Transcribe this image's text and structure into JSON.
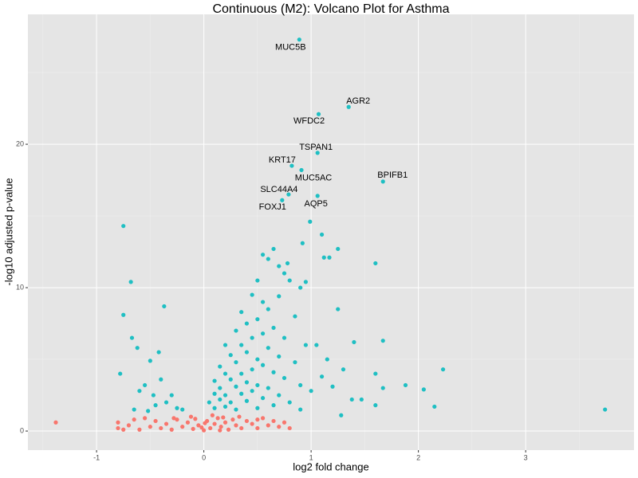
{
  "chart_data": {
    "type": "scatter",
    "title": "Continuous (M2): Volcano Plot for Asthma",
    "xlabel": "log2 fold change",
    "ylabel": "-log10 adjusted p-value",
    "xlim": [
      -1.64,
      4.01
    ],
    "ylim": [
      -1.33,
      29.06
    ],
    "xticks": [
      -1,
      0,
      1,
      2,
      3
    ],
    "yticks": [
      0,
      10,
      20
    ],
    "xminorticks": [
      -1.5,
      -0.5,
      0.5,
      1.5,
      2.5,
      3.5
    ],
    "yminorticks": [
      5,
      15,
      25
    ],
    "grid": true,
    "background": "#e5e5e5",
    "series": [
      {
        "color": "#f8766d",
        "x": [
          -1.38,
          -0.8,
          -0.8,
          -0.7,
          -0.6,
          -0.55,
          -0.5,
          -0.45,
          -0.4,
          -0.35,
          -0.3,
          -0.25,
          -0.2,
          -0.15,
          -0.1,
          -0.05,
          0,
          0.03,
          0.06,
          0.1,
          0.13,
          0.16,
          0.2,
          0.23,
          0.27,
          0.3,
          0.35,
          0.4,
          0.45,
          0.5,
          0.55,
          0.6,
          0.65,
          0.7,
          0.75,
          0.8,
          -0.65,
          -0.75,
          -0.12,
          0.08,
          0.33,
          -0.28,
          0.5,
          0.15,
          -0.02,
          0.01,
          -0.08,
          0.18
        ],
        "y": [
          0.6,
          0.6,
          0.2,
          0.4,
          0.1,
          0.9,
          0.3,
          0.7,
          0.2,
          0.5,
          0.1,
          0.8,
          0.3,
          0.6,
          0.15,
          0.4,
          0.05,
          0.7,
          0.2,
          0.5,
          0.9,
          0.3,
          0.6,
          0.1,
          0.8,
          0.4,
          0.2,
          0.7,
          0.5,
          0.2,
          0.9,
          0.4,
          0.7,
          0.3,
          0.6,
          0.2,
          0.8,
          0.1,
          1.0,
          1.1,
          1.0,
          0.9,
          0.8,
          0.05,
          0.25,
          0.55,
          0.85,
          0.95
        ]
      },
      {
        "color": "#1fbfc3",
        "x": [
          -0.75,
          -0.68,
          -0.75,
          -0.37,
          -0.67,
          -0.62,
          -0.42,
          -0.5,
          -0.78,
          -0.55,
          -0.6,
          -0.4,
          -0.47,
          -0.35,
          -0.25,
          -0.3,
          -0.2,
          -0.45,
          -0.65,
          -0.52,
          0.55,
          0.65,
          0.6,
          0.7,
          0.75,
          0.5,
          0.8,
          0.9,
          0.45,
          0.55,
          0.7,
          0.6,
          0.35,
          0.85,
          0.4,
          0.5,
          0.65,
          0.3,
          0.55,
          0.45,
          0.75,
          0.95,
          0.2,
          0.35,
          0.6,
          0.25,
          0.4,
          0.5,
          0.7,
          0.3,
          0.15,
          0.45,
          0.55,
          0.85,
          0.2,
          0.35,
          0.65,
          0.1,
          0.25,
          0.4,
          0.75,
          0.5,
          0.15,
          0.3,
          0.6,
          0.9,
          0.1,
          0.2,
          0.35,
          0.45,
          0.7,
          1.0,
          0.05,
          0.15,
          0.25,
          0.4,
          0.55,
          0.8,
          0.1,
          0.2,
          0.3,
          0.5,
          0.65,
          0.9,
          0.99,
          1.1,
          0.92,
          1.25,
          1.12,
          1.17,
          1.6,
          0.78,
          0.95,
          1.25,
          1.4,
          1.67,
          1.3,
          1.6,
          2.23,
          1.88,
          2.05,
          1.67,
          1.38,
          1.47,
          1.6,
          2.15,
          1.28,
          3.74,
          1.1,
          1.2,
          1.05,
          1.15
        ],
        "y": [
          14.3,
          10.4,
          8.1,
          8.7,
          6.5,
          5.8,
          5.5,
          4.9,
          4.0,
          3.2,
          2.8,
          3.6,
          2.5,
          2.0,
          1.6,
          2.5,
          1.5,
          1.8,
          1.5,
          1.4,
          12.3,
          12.7,
          12,
          11.5,
          11,
          10.5,
          10.5,
          10,
          9.5,
          9,
          9.4,
          8.5,
          8.3,
          8,
          7.5,
          7.8,
          7.2,
          7,
          6.8,
          6.5,
          6.5,
          6,
          6,
          6,
          5.8,
          5.3,
          5.5,
          5,
          5.2,
          4.8,
          4.5,
          4.3,
          4.6,
          4.8,
          4,
          4,
          4.1,
          3.5,
          3.6,
          3.4,
          3.7,
          3.2,
          3.0,
          3.1,
          3,
          3.2,
          2.6,
          2.5,
          2.6,
          2.8,
          2.5,
          2.8,
          2,
          2.2,
          2,
          2.1,
          2.3,
          2,
          1.6,
          1.7,
          1.5,
          1.6,
          1.8,
          1.5,
          14.6,
          13.7,
          13.1,
          12.7,
          12.1,
          12.1,
          11.7,
          11.7,
          10.4,
          8.5,
          6.2,
          6.3,
          4.3,
          4.0,
          4.3,
          3.2,
          2.9,
          3.0,
          2.2,
          2.2,
          1.8,
          1.7,
          1.1,
          1.5,
          3.8,
          3.1,
          6,
          5
        ]
      }
    ],
    "annotations": [
      {
        "text": "MUC5B",
        "x": 0.89,
        "y": 27.3
      },
      {
        "text": "AGR2",
        "x": 1.35,
        "y": 22.6
      },
      {
        "text": "WFDC2",
        "x": 1.07,
        "y": 22.1
      },
      {
        "text": "TSPAN1",
        "x": 1.06,
        "y": 19.4
      },
      {
        "text": "KRT17",
        "x": 0.82,
        "y": 18.5
      },
      {
        "text": "MUC5AC",
        "x": 0.91,
        "y": 18.2
      },
      {
        "text": "BPIFB1",
        "x": 1.67,
        "y": 17.4
      },
      {
        "text": "SLC44A4",
        "x": 0.79,
        "y": 16.5
      },
      {
        "text": "AQP5",
        "x": 1.06,
        "y": 16.4
      },
      {
        "text": "FOXJ1",
        "x": 0.73,
        "y": 16.1
      }
    ]
  }
}
